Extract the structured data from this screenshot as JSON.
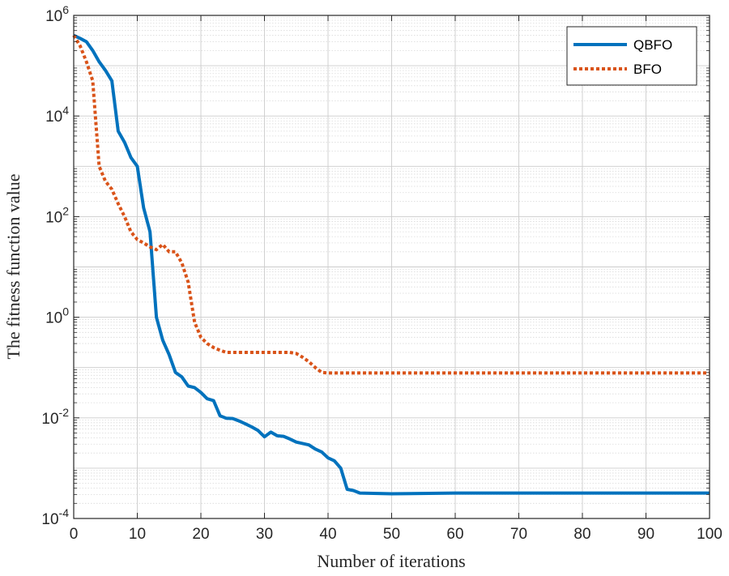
{
  "chart_data": {
    "type": "line",
    "title": "",
    "xlabel": "Number of iterations",
    "ylabel": "The fitness function value",
    "xlim": [
      0,
      100
    ],
    "ylim": [
      0.0001,
      1000000
    ],
    "yscale": "log",
    "grid": true,
    "minor_grid": true,
    "legend_position": "top-right",
    "x_ticks": [
      0,
      10,
      20,
      30,
      40,
      50,
      60,
      70,
      80,
      90,
      100
    ],
    "x_tick_labels": [
      "0",
      "10",
      "20",
      "30",
      "40",
      "50",
      "60",
      "70",
      "80",
      "90",
      "100"
    ],
    "y_ticks": [
      {
        "value": 0.0001,
        "base": "10",
        "exp": "-4"
      },
      {
        "value": 0.01,
        "base": "10",
        "exp": "-2"
      },
      {
        "value": 1,
        "base": "10",
        "exp": "0"
      },
      {
        "value": 100,
        "base": "10",
        "exp": "2"
      },
      {
        "value": 10000,
        "base": "10",
        "exp": "4"
      },
      {
        "value": 1000000,
        "base": "10",
        "exp": "6"
      }
    ],
    "series": [
      {
        "name": "QBFO",
        "color": "#0072BD",
        "style": "solid",
        "x": [
          0,
          1,
          2,
          3,
          4,
          5,
          6,
          7,
          8,
          9,
          10,
          11,
          12,
          13,
          14,
          15,
          16,
          17,
          18,
          19,
          20,
          21,
          22,
          23,
          24,
          25,
          26,
          27,
          28,
          29,
          30,
          31,
          32,
          33,
          34,
          35,
          36,
          37,
          38,
          39,
          40,
          41,
          42,
          43,
          44,
          45,
          50,
          60,
          70,
          80,
          90,
          100
        ],
        "y": [
          400000,
          350000,
          300000,
          200000,
          120000,
          80000,
          50000,
          5000,
          3000,
          1500,
          1000,
          150,
          50,
          1.0,
          0.35,
          0.18,
          0.08,
          0.065,
          0.043,
          0.04,
          0.032,
          0.024,
          0.022,
          0.011,
          0.0098,
          0.0097,
          0.0087,
          0.0076,
          0.0066,
          0.0056,
          0.0042,
          0.0052,
          0.0044,
          0.0043,
          0.0038,
          0.0033,
          0.0031,
          0.0029,
          0.0024,
          0.0021,
          0.0016,
          0.0014,
          0.001,
          0.00038,
          0.00036,
          0.00032,
          0.00031,
          0.00032,
          0.00032,
          0.00032,
          0.00032,
          0.00032
        ]
      },
      {
        "name": "BFO",
        "color": "#D95319",
        "style": "dotted",
        "x": [
          0,
          1,
          2,
          3,
          4,
          5,
          6,
          7,
          8,
          9,
          10,
          11,
          12,
          13,
          14,
          15,
          16,
          17,
          18,
          19,
          20,
          21,
          22,
          23,
          24,
          25,
          26,
          30,
          34,
          35,
          36,
          37,
          38,
          39,
          40,
          50,
          60,
          70,
          80,
          90,
          100
        ],
        "y": [
          400000,
          250000,
          120000,
          50000,
          1000,
          500,
          350,
          180,
          100,
          50,
          35,
          30,
          25,
          22,
          28,
          20,
          20,
          12,
          5,
          0.8,
          0.4,
          0.3,
          0.25,
          0.22,
          0.2,
          0.2,
          0.2,
          0.2,
          0.2,
          0.19,
          0.16,
          0.13,
          0.1,
          0.08,
          0.078,
          0.078,
          0.078,
          0.078,
          0.078,
          0.078,
          0.078
        ]
      }
    ]
  }
}
